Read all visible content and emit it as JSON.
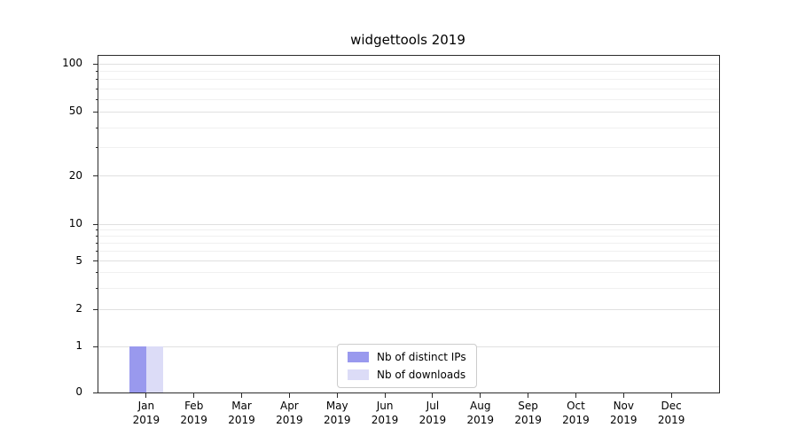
{
  "chart_data": {
    "type": "bar",
    "title": "widgettools 2019",
    "x_tick_labels": [
      [
        "Jan",
        "2019"
      ],
      [
        "Feb",
        "2019"
      ],
      [
        "Mar",
        "2019"
      ],
      [
        "Apr",
        "2019"
      ],
      [
        "May",
        "2019"
      ],
      [
        "Jun",
        "2019"
      ],
      [
        "Jul",
        "2019"
      ],
      [
        "Aug",
        "2019"
      ],
      [
        "Sep",
        "2019"
      ],
      [
        "Oct",
        "2019"
      ],
      [
        "Nov",
        "2019"
      ],
      [
        "Dec",
        "2019"
      ]
    ],
    "series": [
      {
        "name": "Nb of distinct IPs",
        "color": "#9999ee",
        "values": [
          1,
          0,
          0,
          0,
          0,
          0,
          0,
          0,
          0,
          0,
          0,
          0
        ]
      },
      {
        "name": "Nb of downloads",
        "color": "#dcdcf7",
        "values": [
          1,
          0,
          0,
          0,
          0,
          0,
          0,
          0,
          0,
          0,
          0,
          0
        ]
      }
    ],
    "y_axis": {
      "scale": "symlog",
      "major_ticks": [
        0,
        1,
        2,
        5,
        10,
        20,
        50,
        100
      ],
      "minor_ticks": [
        3,
        4,
        6,
        7,
        8,
        9,
        30,
        40,
        60,
        70,
        80,
        90
      ],
      "ylim": [
        0,
        110
      ]
    },
    "grid": true,
    "legend_position": "lower center"
  }
}
